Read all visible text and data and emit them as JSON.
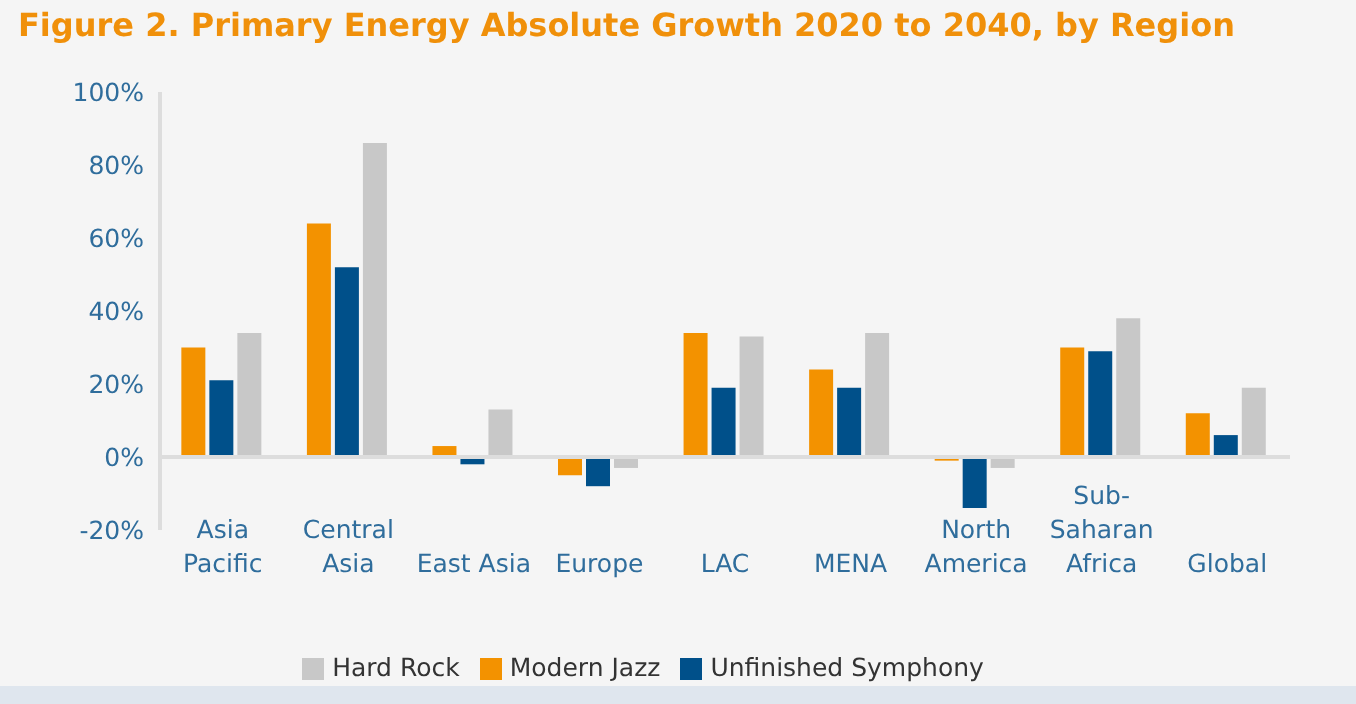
{
  "chart_data": {
    "type": "bar",
    "title": "Figure 2. Primary Energy Absolute Growth 2020 to 2040, by Region",
    "categories": [
      "Asia Pacific",
      "Central Asia",
      "East Asia",
      "Europe",
      "LAC",
      "MENA",
      "North America",
      "Sub-Saharan Africa",
      "Global"
    ],
    "series": [
      {
        "name": "Modern Jazz",
        "color": "#f39200",
        "values": [
          30,
          64,
          3,
          -5,
          34,
          24,
          -1,
          30,
          12
        ]
      },
      {
        "name": "Unfinished Symphony",
        "color": "#00508a",
        "values": [
          21,
          52,
          -2,
          -8,
          19,
          19,
          -14,
          29,
          6
        ]
      },
      {
        "name": "Hard Rock",
        "color": "#c8c8c8",
        "values": [
          34,
          86,
          13,
          -3,
          33,
          34,
          -3,
          38,
          19
        ]
      }
    ],
    "ylim": [
      -20,
      100
    ],
    "yticks": [
      {
        "value": -20,
        "label": "-20%"
      },
      {
        "value": 0,
        "label": "0%"
      },
      {
        "value": 20,
        "label": "20%"
      },
      {
        "value": 40,
        "label": "40%"
      },
      {
        "value": 60,
        "label": "60%"
      },
      {
        "value": 80,
        "label": "80%"
      },
      {
        "value": 100,
        "label": "100%"
      }
    ],
    "grid": false,
    "legend": "bottom"
  }
}
